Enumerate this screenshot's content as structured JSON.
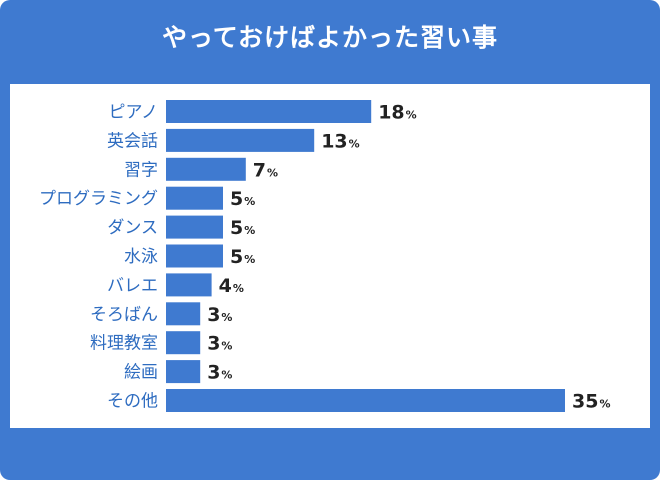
{
  "title": "やっておけばよかった習い事",
  "colors": {
    "frame": "#3f7ad0",
    "bar": "#3f7ad0",
    "label": "#2e6cc0",
    "value": "#222222"
  },
  "chart_data": {
    "type": "bar",
    "orientation": "horizontal",
    "title": "やっておけばよかった習い事",
    "unit": "%",
    "xlim": [
      0,
      40
    ],
    "grid": false,
    "categories": [
      "ピアノ",
      "英会話",
      "習字",
      "プログラミング",
      "ダンス",
      "水泳",
      "バレエ",
      "そろばん",
      "料理教室",
      "絵画",
      "その他"
    ],
    "values": [
      18,
      13,
      7,
      5,
      5,
      5,
      4,
      3,
      3,
      3,
      35
    ]
  }
}
